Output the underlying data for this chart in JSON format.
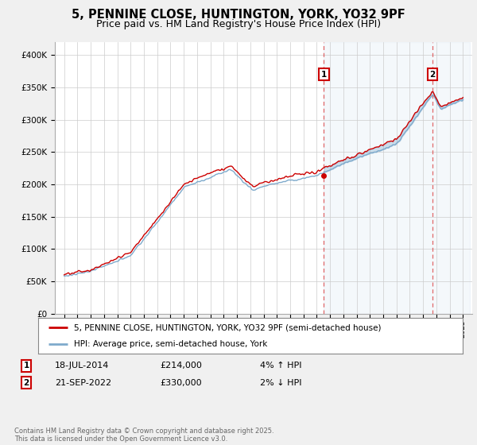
{
  "title": "5, PENNINE CLOSE, HUNTINGTON, YORK, YO32 9PF",
  "subtitle": "Price paid vs. HM Land Registry's House Price Index (HPI)",
  "ylim": [
    0,
    420000
  ],
  "yticks": [
    0,
    50000,
    100000,
    150000,
    200000,
    250000,
    300000,
    350000,
    400000
  ],
  "ytick_labels": [
    "£0",
    "£50K",
    "£100K",
    "£150K",
    "£200K",
    "£250K",
    "£300K",
    "£350K",
    "£400K"
  ],
  "property_color": "#cc0000",
  "hpi_color": "#7eaacc",
  "vline_color": "#dd4444",
  "sale1_year": 2014.54,
  "sale2_year": 2022.72,
  "sale1_value": 214000,
  "sale2_value": 330000,
  "annotation1_date": "18-JUL-2014",
  "annotation1_price": "£214,000",
  "annotation1_hpi": "4% ↑ HPI",
  "annotation2_date": "21-SEP-2022",
  "annotation2_price": "£330,000",
  "annotation2_hpi": "2% ↓ HPI",
  "legend_property": "5, PENNINE CLOSE, HUNTINGTON, YORK, YO32 9PF (semi-detached house)",
  "legend_hpi": "HPI: Average price, semi-detached house, York",
  "footer": "Contains HM Land Registry data © Crown copyright and database right 2025.\nThis data is licensed under the Open Government Licence v3.0.",
  "background_color": "#f0f0f0",
  "plot_background": "#ffffff",
  "grid_color": "#cccccc",
  "title_fontsize": 10.5,
  "subtitle_fontsize": 9
}
